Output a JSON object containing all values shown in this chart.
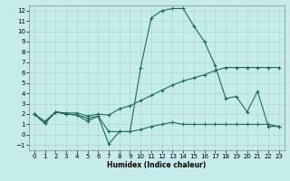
{
  "xlabel": "Humidex (Indice chaleur)",
  "bg_color": "#c5ecea",
  "grid_color": "#afd8d5",
  "line_color": "#1a6b5e",
  "xlim": [
    -0.5,
    23.5
  ],
  "ylim": [
    -1.5,
    12.5
  ],
  "xticks": [
    0,
    1,
    2,
    3,
    4,
    5,
    6,
    7,
    8,
    9,
    10,
    11,
    12,
    13,
    14,
    15,
    16,
    17,
    18,
    19,
    20,
    21,
    22,
    23
  ],
  "yticks": [
    -1,
    0,
    1,
    2,
    3,
    4,
    5,
    6,
    7,
    8,
    9,
    10,
    11,
    12
  ],
  "line1_x": [
    0,
    1,
    2,
    3,
    4,
    5,
    6,
    7,
    8,
    9,
    10,
    11,
    12,
    13,
    14,
    15,
    16,
    17,
    18,
    19,
    20,
    21,
    22,
    23
  ],
  "line1_y": [
    2.0,
    1.1,
    2.2,
    2.0,
    1.9,
    1.6,
    1.8,
    -0.9,
    0.3,
    0.3,
    6.5,
    11.3,
    12.0,
    12.2,
    12.2,
    10.5,
    9.0,
    6.7,
    3.5,
    3.7,
    2.2,
    4.2,
    0.8,
    0.8
  ],
  "line2_x": [
    0,
    1,
    2,
    3,
    4,
    5,
    6,
    7,
    8,
    9,
    10,
    11,
    12,
    13,
    14,
    15,
    16,
    17,
    18,
    19,
    20,
    21,
    22,
    23
  ],
  "line2_y": [
    2.0,
    1.3,
    2.2,
    2.1,
    2.1,
    1.8,
    2.0,
    1.9,
    2.5,
    2.8,
    3.3,
    3.8,
    4.3,
    4.8,
    5.2,
    5.5,
    5.8,
    6.2,
    6.5,
    6.5,
    6.5,
    6.5,
    6.5,
    6.5
  ],
  "line3_x": [
    0,
    1,
    2,
    3,
    4,
    5,
    6,
    7,
    8,
    9,
    10,
    11,
    12,
    13,
    14,
    15,
    16,
    17,
    18,
    19,
    20,
    21,
    22,
    23
  ],
  "line3_y": [
    2.0,
    1.1,
    2.2,
    2.0,
    1.9,
    1.3,
    1.8,
    0.3,
    0.3,
    0.3,
    0.5,
    0.8,
    1.0,
    1.2,
    1.0,
    1.0,
    1.0,
    1.0,
    1.0,
    1.0,
    1.0,
    1.0,
    1.0,
    0.8
  ]
}
